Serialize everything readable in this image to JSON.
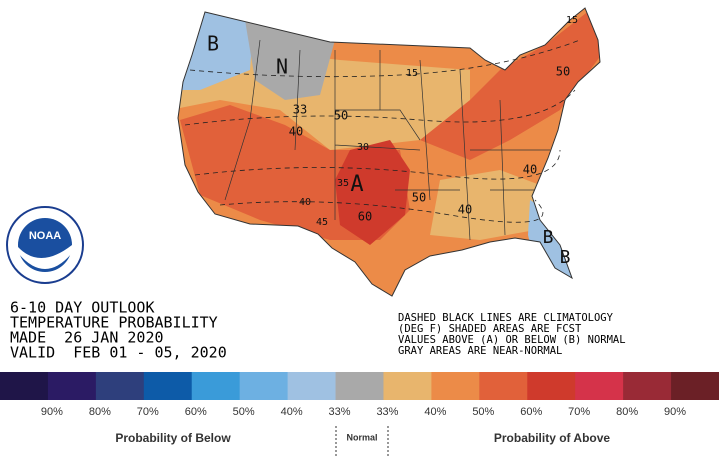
{
  "title_block": [
    "6-10 DAY OUTLOOK",
    "TEMPERATURE PROBABILITY",
    "MADE  26 JAN 2020",
    "VALID  FEB 01 - 05, 2020"
  ],
  "notes": [
    "DASHED BLACK LINES ARE CLIMATOLOGY",
    "(DEG F) SHADED AREAS ARE FCST",
    "VALUES ABOVE (A) OR BELOW (B) NORMAL",
    "GRAY AREAS ARE NEAR-NORMAL"
  ],
  "logo": "NOAA",
  "map_labels": [
    "B",
    "N",
    "A",
    "B",
    "B",
    "15",
    "50",
    "15",
    "33",
    "50",
    "40",
    "30",
    "35",
    "40",
    "45",
    "60",
    "50",
    "40",
    "40"
  ],
  "legend": {
    "colors": [
      "#1f1548",
      "#2b1b64",
      "#2e3f7c",
      "#0d5ba8",
      "#3a9bd9",
      "#6db0e2",
      "#9fc1e2",
      "#a9a9a9",
      "#e8b56d",
      "#ec8b48",
      "#e1613a",
      "#cf3a2c",
      "#d5334a",
      "#992a36",
      "#6b2026"
    ],
    "labels": [
      "90%",
      "80%",
      "70%",
      "60%",
      "50%",
      "40%",
      "33%",
      "33%",
      "40%",
      "50%",
      "60%",
      "70%",
      "80%",
      "90%"
    ],
    "below": "Probability of Below",
    "normal": "Normal",
    "above": "Probability of Above"
  }
}
